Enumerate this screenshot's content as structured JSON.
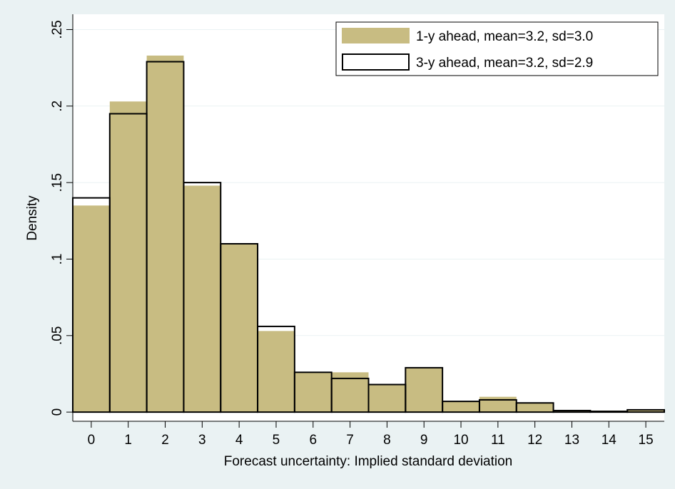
{
  "chart_data": {
    "type": "bar",
    "xlabel": "Forecast uncertainty: Implied standard deviation",
    "ylabel": "Density",
    "x_ticks": [
      "0",
      "1",
      "2",
      "3",
      "4",
      "5",
      "6",
      "7",
      "8",
      "9",
      "10",
      "11",
      "12",
      "13",
      "14",
      "15"
    ],
    "y_ticks": [
      0,
      0.05,
      0.1,
      0.15,
      0.2,
      0.25
    ],
    "y_tick_labels": [
      "0",
      ".05",
      ".1",
      ".15",
      ".2",
      ".25"
    ],
    "xlim": [
      -0.5,
      15.5
    ],
    "ylim": [
      -0.006,
      0.26
    ],
    "grid": "horizontal",
    "legend_position": "top-right",
    "categories": [
      0,
      1,
      2,
      3,
      4,
      5,
      6,
      7,
      8,
      9,
      10,
      11,
      12,
      13,
      14,
      15
    ],
    "series": [
      {
        "name": "1-y ahead, mean=3.2, sd=3.0",
        "style": "filled",
        "color": "#c8bc82",
        "values": [
          0.135,
          0.203,
          0.233,
          0.148,
          0.11,
          0.053,
          0.026,
          0.026,
          0.018,
          0.029,
          0.007,
          0.01,
          0.006,
          0.001,
          0.001,
          0.0015
        ]
      },
      {
        "name": "3-y ahead, mean=3.2, sd=2.9",
        "style": "outline",
        "color": "#000000",
        "values": [
          0.14,
          0.195,
          0.229,
          0.15,
          0.11,
          0.056,
          0.026,
          0.022,
          0.018,
          0.029,
          0.007,
          0.008,
          0.006,
          0.001,
          0.0005,
          0.0015
        ]
      }
    ]
  },
  "colors": {
    "background": "#eaf2f3",
    "plot_area": "#ffffff",
    "grid": "#eaf2f3",
    "fill": "#c8bc82",
    "outline": "#000000"
  }
}
